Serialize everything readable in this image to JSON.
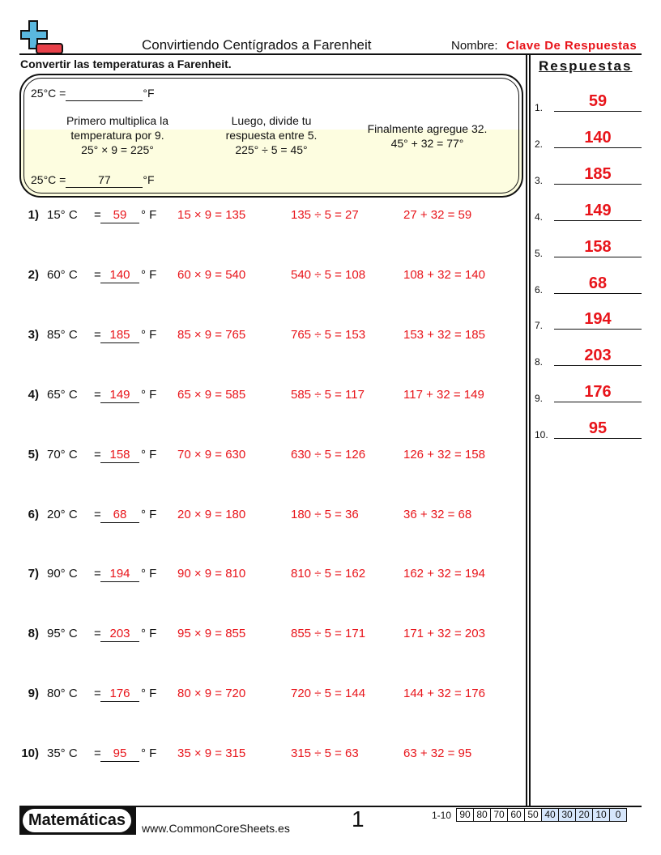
{
  "header": {
    "title": "Convirtiendo Centígrados a Farenheit",
    "name_label": "Nombre:",
    "name_value": "Clave De Respuestas"
  },
  "instructions": "Convertir las temperaturas a Farenheit.",
  "example": {
    "question_left": "25°C =",
    "question_right": "°F",
    "step1": [
      "Primero multiplica la",
      "temperatura por 9.",
      "25° × 9 = 225°"
    ],
    "step2": [
      "Luego, divide tu",
      "respuesta entre 5.",
      "225° ÷ 5 = 45°"
    ],
    "step3": [
      "Finalmente agregue 32.",
      "45° + 32 = 77°"
    ],
    "answer_left": "25°C =",
    "answer_value": "77",
    "answer_right": "°F"
  },
  "problems": [
    {
      "num": "1)",
      "c": "15° C",
      "ans": "59",
      "mul": "15 × 9 = 135",
      "div": "135 ÷ 5 = 27",
      "add": "27 + 32 = 59"
    },
    {
      "num": "2)",
      "c": "60° C",
      "ans": "140",
      "mul": "60 × 9 = 540",
      "div": "540 ÷ 5 = 108",
      "add": "108 + 32 = 140"
    },
    {
      "num": "3)",
      "c": "85° C",
      "ans": "185",
      "mul": "85 × 9 = 765",
      "div": "765 ÷ 5 = 153",
      "add": "153 + 32 = 185"
    },
    {
      "num": "4)",
      "c": "65° C",
      "ans": "149",
      "mul": "65 × 9 = 585",
      "div": "585 ÷ 5 = 117",
      "add": "117 + 32 = 149"
    },
    {
      "num": "5)",
      "c": "70° C",
      "ans": "158",
      "mul": "70 × 9 = 630",
      "div": "630 ÷ 5 = 126",
      "add": "126 + 32 = 158"
    },
    {
      "num": "6)",
      "c": "20° C",
      "ans": "68",
      "mul": "20 × 9 = 180",
      "div": "180 ÷ 5 = 36",
      "add": "36 + 32 = 68"
    },
    {
      "num": "7)",
      "c": "90° C",
      "ans": "194",
      "mul": "90 × 9 = 810",
      "div": "810 ÷ 5 = 162",
      "add": "162 + 32 = 194"
    },
    {
      "num": "8)",
      "c": "95° C",
      "ans": "203",
      "mul": "95 × 9 = 855",
      "div": "855 ÷ 5 = 171",
      "add": "171 + 32 = 203"
    },
    {
      "num": "9)",
      "c": "80° C",
      "ans": "176",
      "mul": "80 × 9 = 720",
      "div": "720 ÷ 5 = 144",
      "add": "144 + 32 = 176"
    },
    {
      "num": "10)",
      "c": "35° C",
      "ans": "95",
      "mul": "35 × 9 = 315",
      "div": "315 ÷ 5 = 63",
      "add": "63 + 32 = 95"
    }
  ],
  "eq": "=",
  "unit_f": "° F",
  "answers": {
    "title": "Respuestas",
    "items": [
      {
        "n": "1.",
        "v": "59"
      },
      {
        "n": "2.",
        "v": "140"
      },
      {
        "n": "3.",
        "v": "185"
      },
      {
        "n": "4.",
        "v": "149"
      },
      {
        "n": "5.",
        "v": "158"
      },
      {
        "n": "6.",
        "v": "68"
      },
      {
        "n": "7.",
        "v": "194"
      },
      {
        "n": "8.",
        "v": "203"
      },
      {
        "n": "9.",
        "v": "176"
      },
      {
        "n": "10.",
        "v": "95"
      }
    ]
  },
  "footer": {
    "brand": "Matemáticas",
    "site": "www.CommonCoreSheets.es",
    "page": "1",
    "score_label": "1-10",
    "scores": [
      "90",
      "80",
      "70",
      "60",
      "50",
      "40",
      "30",
      "20",
      "10",
      "0"
    ]
  },
  "colors": {
    "answer": "#e8141a",
    "score_highlight": "#d6e6fb",
    "logo_blue": "#5ab8df",
    "logo_red": "#e8414a"
  }
}
